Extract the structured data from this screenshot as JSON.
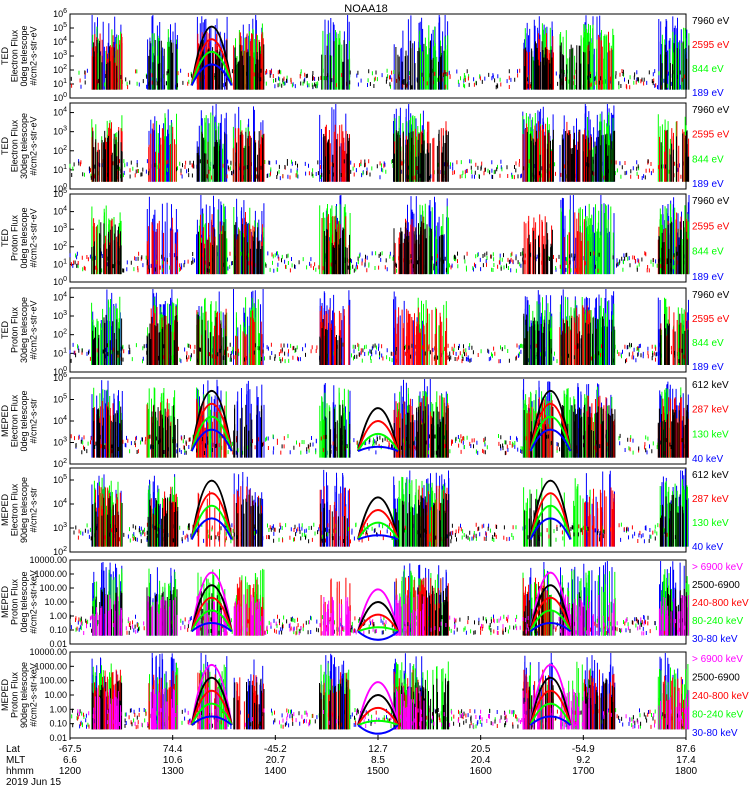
{
  "title": "NOAA18",
  "colors": {
    "blue": "#0000ff",
    "red": "#ff0000",
    "green": "#00ff00",
    "black": "#000000",
    "magenta": "#ff00ff"
  },
  "chart_data": [
    {
      "type": "scatter",
      "ylabel_lines": [
        "TED",
        "Electron Flux",
        "0deg telescope",
        "#/cm2-s-str-eV"
      ],
      "yticks": [
        "10^0",
        "10^1",
        "10^2",
        "10^3",
        "10^4",
        "10^5",
        "10^6"
      ],
      "ylim_exp": [
        0,
        6
      ],
      "log_scale": true,
      "legend": [
        {
          "label": "7960 eV",
          "color": "black"
        },
        {
          "label": "2595 eV",
          "color": "red"
        },
        {
          "label": "844 eV",
          "color": "green"
        },
        {
          "label": "189 eV",
          "color": "blue"
        }
      ]
    },
    {
      "type": "scatter",
      "ylabel_lines": [
        "TED",
        "Electron Flux",
        "30deg telescope",
        "#/cm2-s-str-eV"
      ],
      "yticks": [
        "10^0",
        "10^1",
        "10^2",
        "10^3",
        "10^4"
      ],
      "ylim_exp": [
        0,
        4.5
      ],
      "log_scale": true,
      "legend": [
        {
          "label": "7960 eV",
          "color": "black"
        },
        {
          "label": "2595 eV",
          "color": "red"
        },
        {
          "label": "844 eV",
          "color": "green"
        },
        {
          "label": "189 eV",
          "color": "blue"
        }
      ]
    },
    {
      "type": "scatter",
      "ylabel_lines": [
        "TED",
        "Proton Flux",
        "0deg telescope",
        "#/cm2-s-str-eV"
      ],
      "yticks": [
        "10^0",
        "10^1",
        "10^2",
        "10^3",
        "10^4",
        "10^5"
      ],
      "ylim_exp": [
        0,
        5
      ],
      "log_scale": true,
      "legend": [
        {
          "label": "7960 eV",
          "color": "black"
        },
        {
          "label": "2595 eV",
          "color": "red"
        },
        {
          "label": "844 eV",
          "color": "green"
        },
        {
          "label": "189 eV",
          "color": "blue"
        }
      ]
    },
    {
      "type": "scatter",
      "ylabel_lines": [
        "TED",
        "Proton Flux",
        "30deg telescope",
        "#/cm2-s-str-eV"
      ],
      "yticks": [
        "10^0",
        "10^1",
        "10^2",
        "10^3",
        "10^4"
      ],
      "ylim_exp": [
        0,
        4.5
      ],
      "log_scale": true,
      "legend": [
        {
          "label": "7960 eV",
          "color": "black"
        },
        {
          "label": "2595 eV",
          "color": "red"
        },
        {
          "label": "844 eV",
          "color": "green"
        },
        {
          "label": "189 eV",
          "color": "blue"
        }
      ]
    },
    {
      "type": "scatter",
      "ylabel_lines": [
        "MEPED",
        "Electron Flux",
        "0deg telescope",
        "#/cm2-s-str"
      ],
      "yticks": [
        "10^2",
        "10^3",
        "10^4",
        "10^5",
        "10^6"
      ],
      "ylim_exp": [
        2,
        6
      ],
      "log_scale": true,
      "legend": [
        {
          "label": "612 keV",
          "color": "black"
        },
        {
          "label": "287 keV",
          "color": "red"
        },
        {
          "label": "130 keV",
          "color": "green"
        },
        {
          "label": "40 keV",
          "color": "blue"
        }
      ]
    },
    {
      "type": "scatter",
      "ylabel_lines": [
        "MEPED",
        "Electron Flux",
        "90deg telescope",
        "#/cm2-s-str"
      ],
      "yticks": [
        "10^2",
        "10^3",
        "10^4",
        "10^5"
      ],
      "ylim_exp": [
        2,
        5.5
      ],
      "log_scale": true,
      "legend": [
        {
          "label": "612 keV",
          "color": "black"
        },
        {
          "label": "287 keV",
          "color": "red"
        },
        {
          "label": "130 keV",
          "color": "green"
        },
        {
          "label": "40 keV",
          "color": "blue"
        }
      ]
    },
    {
      "type": "scatter",
      "ylabel_lines": [
        "MEPED",
        "Proton Flux",
        "0deg telescope",
        "#/cm2-s-str-keV"
      ],
      "yticks": [
        "0.01",
        "0.10",
        "1.00",
        "10.00",
        "100.00",
        "1000.00",
        "10000.00"
      ],
      "ylim_exp": [
        -2,
        4
      ],
      "log_scale": true,
      "legend": [
        {
          "label": "> 6900 keV",
          "color": "magenta"
        },
        {
          "label": "2500-6900",
          "color": "black"
        },
        {
          "label": "240-800 keV",
          "color": "red"
        },
        {
          "label": "80-240 keV",
          "color": "green"
        },
        {
          "label": "30-80 keV",
          "color": "blue"
        }
      ]
    },
    {
      "type": "scatter",
      "ylabel_lines": [
        "MEPED",
        "Proton Flux",
        "90deg telescope",
        "#/cm2-s-str-keV"
      ],
      "yticks": [
        "0.01",
        "0.10",
        "1.00",
        "10.00",
        "100.00",
        "1000.00",
        "10000.00"
      ],
      "ylim_exp": [
        -2,
        4
      ],
      "log_scale": true,
      "legend": [
        {
          "label": "> 6900 keV",
          "color": "magenta"
        },
        {
          "label": "2500-6900",
          "color": "black"
        },
        {
          "label": "240-800 keV",
          "color": "red"
        },
        {
          "label": "80-240 keV",
          "color": "green"
        },
        {
          "label": "30-80 keV",
          "color": "blue"
        }
      ]
    }
  ],
  "x_axis": {
    "row_labels": [
      "Lat",
      "MLT",
      "hhmm"
    ],
    "date": "2019 Jun 15",
    "ticks": [
      {
        "lat": "-67.5",
        "mlt": "6.6",
        "hhmm": "1200"
      },
      {
        "lat": "74.4",
        "mlt": "10.6",
        "hhmm": "1300"
      },
      {
        "lat": "-45.2",
        "mlt": "20.7",
        "hhmm": "1400"
      },
      {
        "lat": "12.7",
        "mlt": "8.5",
        "hhmm": "1500"
      },
      {
        "lat": "20.5",
        "mlt": "20.4",
        "hhmm": "1600"
      },
      {
        "lat": "-54.9",
        "mlt": "9.2",
        "hhmm": "1700"
      },
      {
        "lat": "87.6",
        "mlt": "17.4",
        "hhmm": "1800"
      }
    ]
  }
}
